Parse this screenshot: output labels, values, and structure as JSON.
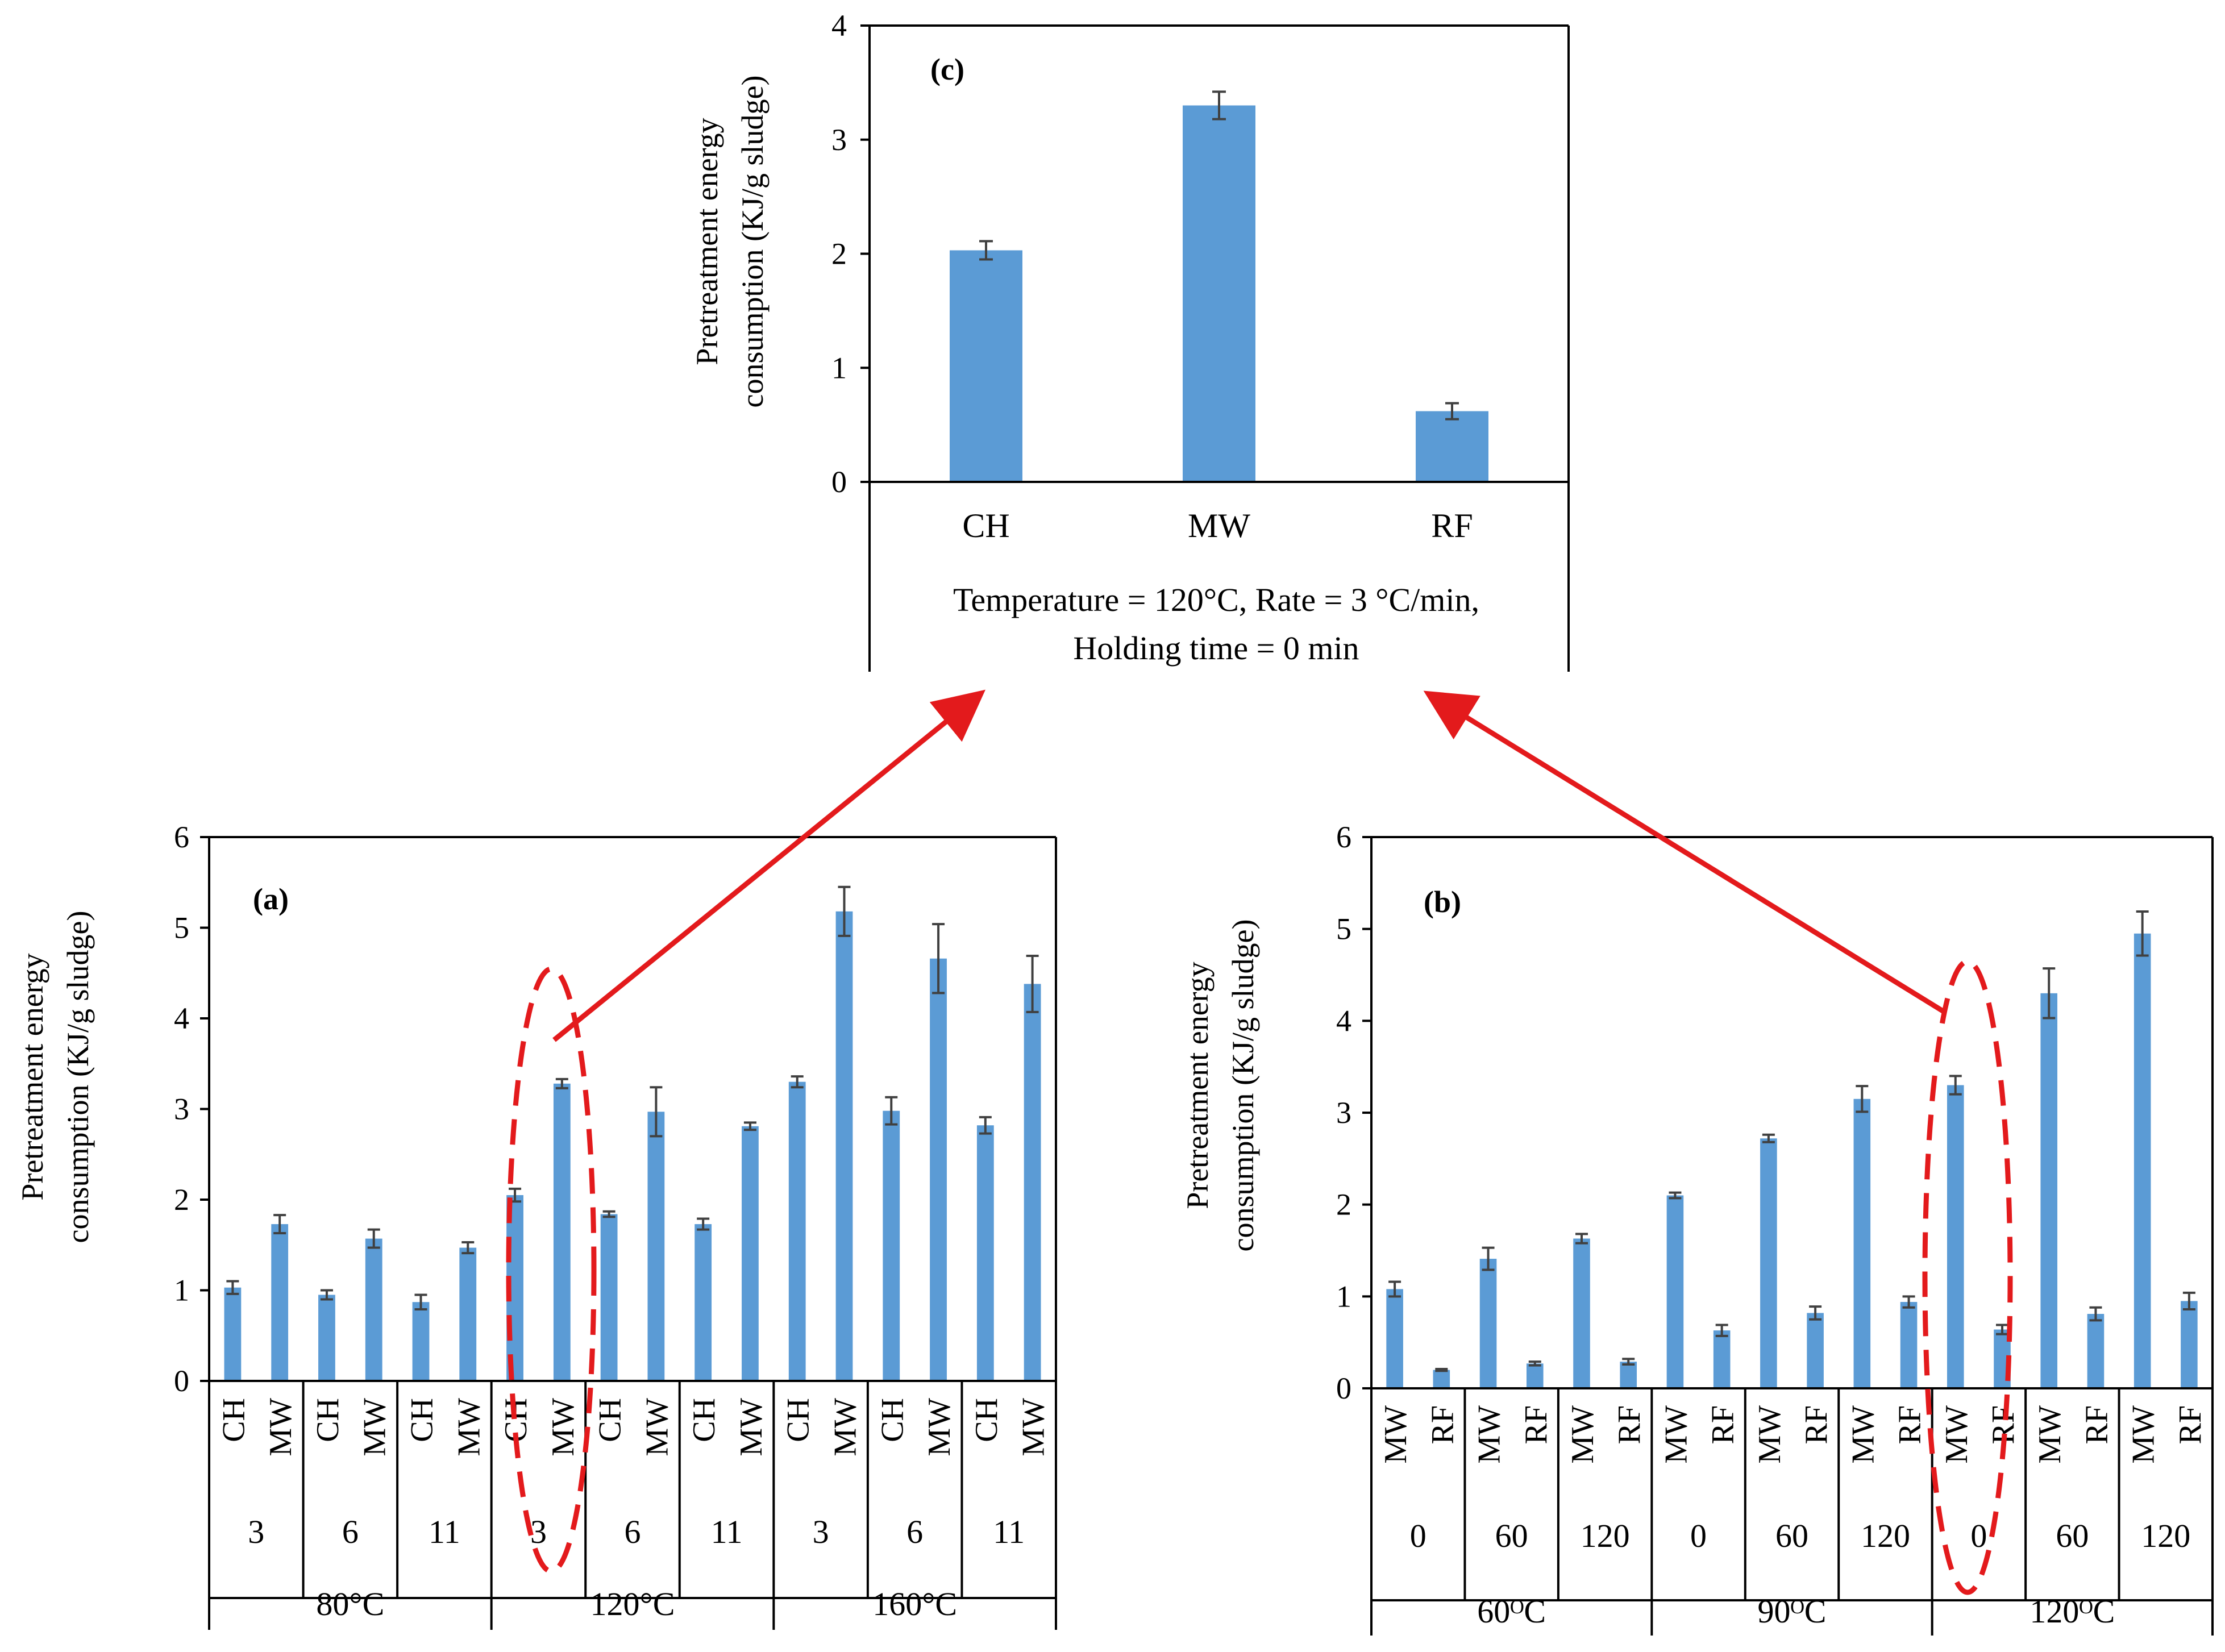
{
  "colors": {
    "bar": "#5B9BD5",
    "bar_edge": "#4A86BD",
    "axis": "#000000",
    "error_bar": "#404040",
    "highlight": "#E31A1C"
  },
  "chart_data": [
    {
      "id": "c",
      "type": "bar",
      "panel_label": "(c)",
      "ylabel_line1": "Pretreatment energy",
      "ylabel_line2": "consumption (KJ/g sludge)",
      "ylim": [
        0,
        4
      ],
      "yticks": [
        "0",
        "1",
        "2",
        "3",
        "4"
      ],
      "categories": [
        "CH",
        "MW",
        "RF"
      ],
      "values": [
        2.03,
        3.3,
        0.62
      ],
      "errors": [
        0.08,
        0.12,
        0.07
      ],
      "caption_line1": "Temperature = 120°C, Rate = 3 °C/min,",
      "caption_line2": "Holding time = 0 min"
    },
    {
      "id": "a",
      "type": "bar",
      "panel_label": "(a)",
      "ylabel_line1": "Pretreatment energy",
      "ylabel_line2": "consumption (KJ/g sludge)",
      "ylim": [
        0,
        6
      ],
      "yticks": [
        "0",
        "1",
        "2",
        "3",
        "4",
        "5",
        "6"
      ],
      "methods": [
        "CH",
        "MW",
        "CH",
        "MW",
        "CH",
        "MW",
        "CH",
        "MW",
        "CH",
        "MW",
        "CH",
        "MW",
        "CH",
        "MW",
        "CH",
        "MW",
        "CH",
        "MW"
      ],
      "values": [
        1.03,
        1.73,
        0.95,
        1.57,
        0.87,
        1.47,
        2.05,
        3.28,
        1.84,
        2.97,
        1.73,
        2.81,
        3.3,
        5.18,
        2.98,
        4.66,
        2.82,
        4.38
      ],
      "errors": [
        0.07,
        0.1,
        0.05,
        0.1,
        0.08,
        0.06,
        0.07,
        0.05,
        0.03,
        0.27,
        0.06,
        0.04,
        0.06,
        0.27,
        0.15,
        0.38,
        0.09,
        0.31
      ],
      "level2_labels": [
        "3",
        "6",
        "11",
        "3",
        "6",
        "11",
        "3",
        "6",
        "11"
      ],
      "level3_labels": [
        "80°C",
        "120°C",
        "160°C"
      ]
    },
    {
      "id": "b",
      "type": "bar",
      "panel_label": "(b)",
      "ylabel_line1": "Pretreatment energy",
      "ylabel_line2": "consumption (KJ/g sludge)",
      "ylim": [
        0,
        6
      ],
      "yticks": [
        "0",
        "1",
        "2",
        "3",
        "4",
        "5",
        "6"
      ],
      "methods": [
        "MW",
        "RF",
        "MW",
        "RF",
        "MW",
        "RF",
        "MW",
        "RF",
        "MW",
        "RF",
        "MW",
        "RF",
        "MW",
        "RF",
        "MW",
        "RF",
        "MW",
        "RF"
      ],
      "values": [
        1.08,
        0.2,
        1.41,
        0.27,
        1.63,
        0.29,
        2.1,
        0.63,
        2.72,
        0.82,
        3.15,
        0.94,
        3.3,
        0.64,
        4.3,
        0.81,
        4.95,
        0.95
      ],
      "errors": [
        0.08,
        0.01,
        0.12,
        0.02,
        0.05,
        0.03,
        0.03,
        0.06,
        0.04,
        0.07,
        0.14,
        0.06,
        0.1,
        0.05,
        0.27,
        0.07,
        0.24,
        0.09
      ],
      "level2_labels": [
        "0",
        "60",
        "120",
        "0",
        "60",
        "120",
        "0",
        "60",
        "120"
      ],
      "level3_labels": [
        "60ᴼC",
        "90ᴼC",
        "120ᴼC"
      ]
    }
  ]
}
